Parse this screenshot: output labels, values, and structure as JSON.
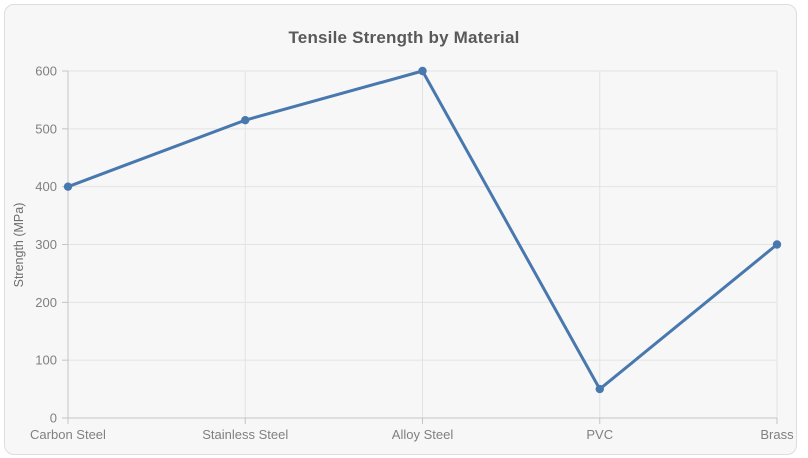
{
  "card": {
    "background": "#f7f7f8",
    "border_color": "#dddddd"
  },
  "chart_data": {
    "type": "line",
    "title": "Tensile Strength by Material",
    "categories": [
      "Carbon Steel",
      "Stainless Steel",
      "Alloy Steel",
      "PVC",
      "Brass"
    ],
    "values": [
      400,
      515,
      600,
      50,
      300
    ],
    "xlabel": "",
    "ylabel": "Strength (MPa)",
    "ylim": [
      0,
      600
    ],
    "yticks": [
      0,
      100,
      200,
      300,
      400,
      500,
      600
    ],
    "grid": "on",
    "legend": "none",
    "line_color": "#4878ad",
    "marker": "circle"
  },
  "styles": {
    "grid_color": "#e3e3e3",
    "axis_color": "#c4c4c4",
    "tick_label_color": "#808080",
    "axis_title_color": "#6e6e6e",
    "title_color": "#595959"
  }
}
